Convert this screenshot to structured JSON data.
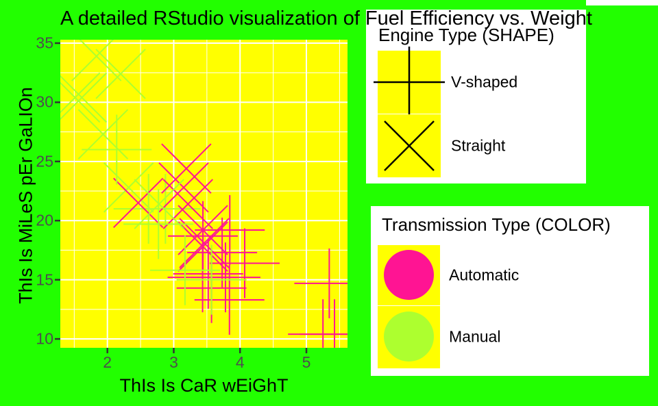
{
  "title": "A detailed RStudio visualization of Fuel Efficiency vs. Weight",
  "axes": {
    "x_label": "ThIs Is CaR wEiGhT",
    "y_label": "ThIs Is MiLeS pEr GaLIOn",
    "x_ticks": [
      2,
      3,
      4,
      5
    ],
    "y_ticks": [
      10,
      15,
      20,
      25,
      30,
      35
    ],
    "x_minor": [
      1.5,
      2.5,
      3.5,
      4.5,
      5.5
    ],
    "y_minor": [
      12.5,
      17.5,
      22.5,
      27.5,
      32.5
    ]
  },
  "colors": {
    "background_green": "#22FF00",
    "panel_yellow": "#FFFF00",
    "automatic": "#FF1493",
    "manual": "#ADFF2F",
    "gridline": "#FFFFFF",
    "tick_text": "#4d4d4d",
    "tick_mark": "#333333"
  },
  "legends": {
    "engine": {
      "title": "Engine Type (SHAPE)",
      "items": [
        {
          "label": "V-shaped",
          "shape": "plus"
        },
        {
          "label": "Straight",
          "shape": "x"
        }
      ]
    },
    "transmission": {
      "title": "Transmission Type (COLOR)",
      "items": [
        {
          "label": "Automatic",
          "color": "#FF1493"
        },
        {
          "label": "Manual",
          "color": "#ADFF2F"
        }
      ]
    }
  },
  "chart_data": {
    "type": "scatter",
    "title": "A detailed RStudio visualization of Fuel Efficiency vs. Weight",
    "xlabel": "ThIs Is CaR wEiGhT",
    "ylabel": "ThIs Is MiLeS pEr GaLIOn",
    "xlim": [
      1.29,
      5.62
    ],
    "ylim": [
      9.25,
      35.29
    ],
    "grid": "white major+minor on yellow panel",
    "legend_position": "right, white boxes with yellow keys",
    "shape_encoding": {
      "plus": "V-shaped",
      "x": "Straight"
    },
    "color_encoding": {
      "#FF1493": "Automatic",
      "#ADFF2F": "Manual"
    },
    "points": [
      {
        "wt": 2.62,
        "mpg": 21.0,
        "engine": "V-shaped",
        "transmission": "Manual"
      },
      {
        "wt": 2.875,
        "mpg": 21.0,
        "engine": "V-shaped",
        "transmission": "Manual"
      },
      {
        "wt": 2.32,
        "mpg": 22.8,
        "engine": "Straight",
        "transmission": "Manual"
      },
      {
        "wt": 3.215,
        "mpg": 21.4,
        "engine": "Straight",
        "transmission": "Automatic"
      },
      {
        "wt": 3.44,
        "mpg": 18.7,
        "engine": "V-shaped",
        "transmission": "Automatic"
      },
      {
        "wt": 3.46,
        "mpg": 18.1,
        "engine": "Straight",
        "transmission": "Automatic"
      },
      {
        "wt": 3.57,
        "mpg": 14.3,
        "engine": "V-shaped",
        "transmission": "Automatic"
      },
      {
        "wt": 3.19,
        "mpg": 24.4,
        "engine": "Straight",
        "transmission": "Automatic"
      },
      {
        "wt": 3.15,
        "mpg": 22.8,
        "engine": "Straight",
        "transmission": "Automatic"
      },
      {
        "wt": 3.44,
        "mpg": 19.2,
        "engine": "Straight",
        "transmission": "Automatic"
      },
      {
        "wt": 3.44,
        "mpg": 17.8,
        "engine": "Straight",
        "transmission": "Automatic"
      },
      {
        "wt": 4.07,
        "mpg": 16.4,
        "engine": "V-shaped",
        "transmission": "Automatic"
      },
      {
        "wt": 3.73,
        "mpg": 17.3,
        "engine": "V-shaped",
        "transmission": "Automatic"
      },
      {
        "wt": 3.78,
        "mpg": 15.2,
        "engine": "V-shaped",
        "transmission": "Automatic"
      },
      {
        "wt": 5.25,
        "mpg": 10.4,
        "engine": "V-shaped",
        "transmission": "Automatic"
      },
      {
        "wt": 5.424,
        "mpg": 10.4,
        "engine": "V-shaped",
        "transmission": "Automatic"
      },
      {
        "wt": 5.345,
        "mpg": 14.7,
        "engine": "V-shaped",
        "transmission": "Automatic"
      },
      {
        "wt": 2.2,
        "mpg": 32.4,
        "engine": "Straight",
        "transmission": "Manual"
      },
      {
        "wt": 1.615,
        "mpg": 30.4,
        "engine": "Straight",
        "transmission": "Manual"
      },
      {
        "wt": 1.835,
        "mpg": 33.9,
        "engine": "Straight",
        "transmission": "Manual"
      },
      {
        "wt": 2.465,
        "mpg": 21.5,
        "engine": "Straight",
        "transmission": "Automatic"
      },
      {
        "wt": 3.52,
        "mpg": 15.5,
        "engine": "V-shaped",
        "transmission": "Automatic"
      },
      {
        "wt": 3.435,
        "mpg": 15.2,
        "engine": "V-shaped",
        "transmission": "Automatic"
      },
      {
        "wt": 3.84,
        "mpg": 13.3,
        "engine": "V-shaped",
        "transmission": "Automatic"
      },
      {
        "wt": 3.845,
        "mpg": 19.2,
        "engine": "V-shaped",
        "transmission": "Automatic"
      },
      {
        "wt": 1.935,
        "mpg": 27.3,
        "engine": "Straight",
        "transmission": "Manual"
      },
      {
        "wt": 2.14,
        "mpg": 26.0,
        "engine": "V-shaped",
        "transmission": "Manual"
      },
      {
        "wt": 1.513,
        "mpg": 30.4,
        "engine": "Straight",
        "transmission": "Manual"
      },
      {
        "wt": 3.17,
        "mpg": 15.8,
        "engine": "V-shaped",
        "transmission": "Manual"
      },
      {
        "wt": 2.77,
        "mpg": 19.7,
        "engine": "V-shaped",
        "transmission": "Manual"
      },
      {
        "wt": 3.57,
        "mpg": 15.0,
        "engine": "V-shaped",
        "transmission": "Manual"
      },
      {
        "wt": 2.78,
        "mpg": 21.4,
        "engine": "Straight",
        "transmission": "Manual"
      }
    ]
  }
}
